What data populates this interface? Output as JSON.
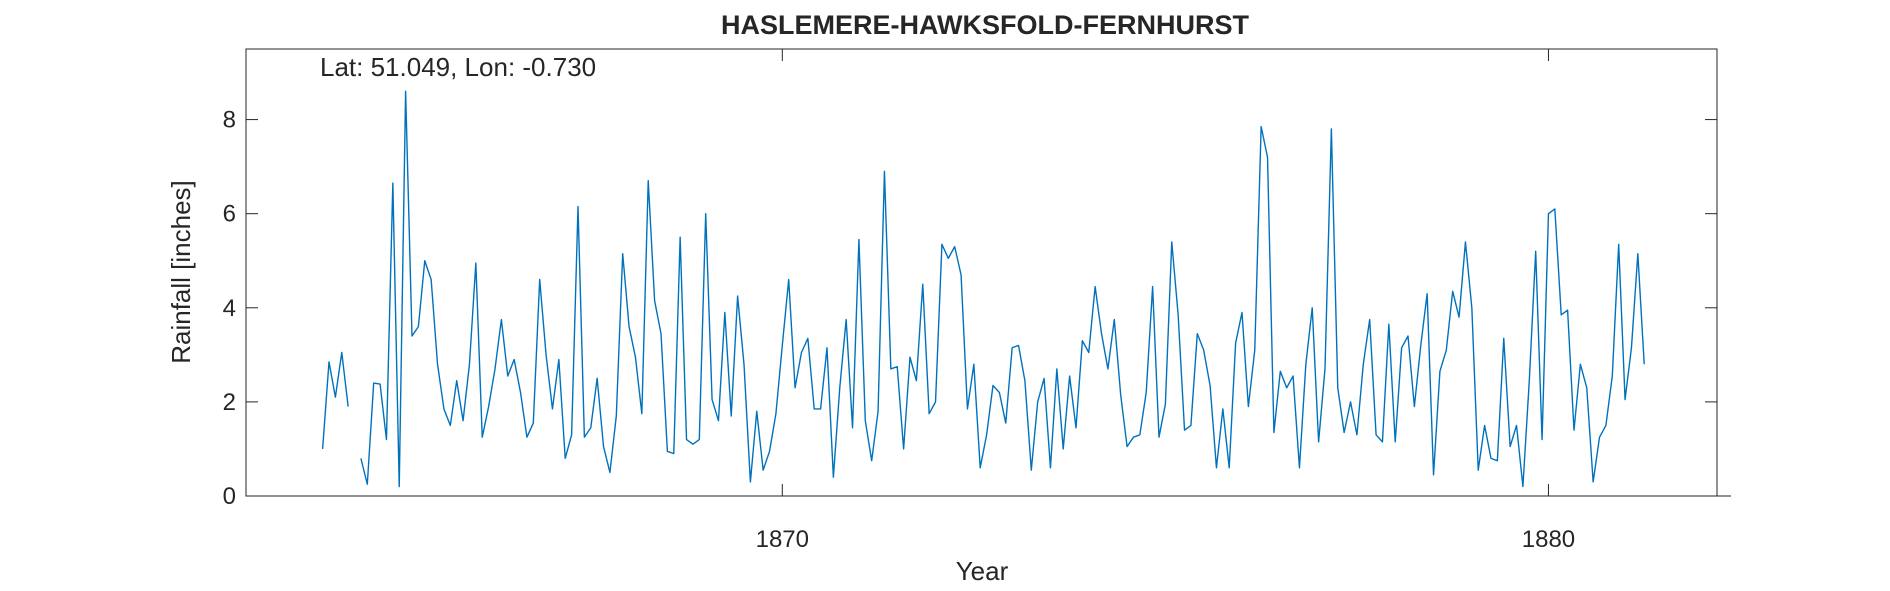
{
  "chart_data": {
    "type": "line",
    "title": "HASLEMERE-HAWKSFOLD-FERNHURST",
    "annotation": "Lat: 51.049, Lon: -0.730",
    "xlabel": "Year",
    "ylabel": "Rainfall [inches]",
    "xlim": [
      1863.0,
      1882.2
    ],
    "ylim": [
      0,
      9.5
    ],
    "x_ticks": [
      1870,
      1880
    ],
    "x_tick_labels": [
      "1870",
      "1880"
    ],
    "y_ticks": [
      0,
      2,
      4,
      6,
      8
    ],
    "y_tick_labels": [
      "0",
      "2",
      "4",
      "6",
      "8"
    ],
    "grid": false,
    "color": "#0072BD",
    "x_start": "1864-01",
    "interval": "monthly",
    "series": [
      {
        "values": [
          1.0,
          2.85,
          2.1,
          3.05,
          1.9,
          null,
          0.8,
          0.25,
          2.4,
          2.38,
          1.2,
          6.65,
          0.2,
          8.6,
          3.4,
          3.6,
          5.0,
          4.6,
          2.8,
          1.85,
          1.5,
          2.45,
          1.6,
          2.8,
          4.95,
          1.25,
          1.9,
          2.7,
          3.75,
          2.55,
          2.9,
          2.2,
          1.25,
          1.55,
          4.6,
          3.0,
          1.85,
          2.9,
          0.8,
          1.3,
          6.15,
          1.25,
          1.45,
          2.5,
          1.05,
          0.5,
          1.7,
          5.15,
          3.6,
          2.95,
          1.75,
          6.7,
          4.15,
          3.45,
          0.95,
          0.9,
          5.5,
          1.2,
          1.1,
          1.2,
          6.0,
          2.05,
          1.6,
          3.9,
          1.7,
          4.25,
          2.8,
          0.3,
          1.8,
          0.55,
          0.95,
          1.75,
          3.2,
          4.6,
          2.3,
          3.05,
          3.35,
          1.85,
          1.85,
          3.15,
          0.4,
          2.3,
          3.75,
          1.45,
          5.45,
          1.6,
          0.75,
          1.8,
          6.9,
          2.7,
          2.75,
          1.0,
          2.95,
          2.45,
          4.5,
          1.75,
          2.0,
          5.35,
          5.05,
          5.3,
          4.7,
          1.85,
          2.8,
          0.6,
          1.3,
          2.35,
          2.2,
          1.55,
          3.15,
          3.2,
          2.45,
          0.55,
          2.0,
          2.5,
          0.6,
          2.7,
          1.0,
          2.55,
          1.45,
          3.3,
          3.05,
          4.45,
          3.45,
          2.7,
          3.75,
          2.15,
          1.05,
          1.25,
          1.3,
          2.2,
          4.45,
          1.25,
          1.95,
          5.4,
          3.85,
          1.4,
          1.5,
          3.45,
          3.1,
          2.35,
          0.6,
          1.85,
          0.6,
          3.25,
          3.9,
          1.9,
          3.1,
          7.85,
          7.2,
          1.35,
          2.65,
          2.3,
          2.55,
          0.6,
          2.8,
          4.0,
          1.15,
          2.7,
          7.8,
          2.3,
          1.35,
          2.0,
          1.3,
          2.8,
          3.75,
          1.3,
          1.15,
          3.65,
          1.15,
          3.15,
          3.4,
          1.9,
          3.2,
          4.3,
          0.45,
          2.65,
          3.1,
          4.35,
          3.8,
          5.4,
          4.0,
          0.55,
          1.5,
          0.8,
          0.75,
          3.35,
          1.05,
          1.5,
          0.2,
          2.45,
          5.2,
          1.2,
          6.0,
          6.1,
          3.85,
          3.95,
          1.4,
          2.8,
          2.3,
          0.3,
          1.25,
          1.5,
          2.55,
          5.35,
          2.05,
          3.15,
          5.15,
          2.8
        ]
      }
    ]
  }
}
